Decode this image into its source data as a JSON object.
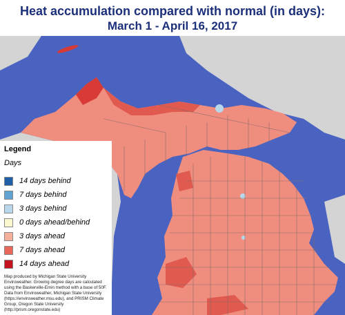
{
  "title": {
    "line1": "Heat accumulation compared with normal (in days):",
    "line2": "March 1 - April 16, 2017"
  },
  "legend": {
    "heading": "Legend",
    "subheading": "Days",
    "items": [
      {
        "label": "14 days behind",
        "color": "#1f5fa8"
      },
      {
        "label": "7 days behind",
        "color": "#5fa3d1"
      },
      {
        "label": "3 days behind",
        "color": "#b9d7ea"
      },
      {
        "label": "0 days ahead/behind",
        "color": "#fbf8cf"
      },
      {
        "label": "3 days ahead",
        "color": "#f4b09b"
      },
      {
        "label": "7 days ahead",
        "color": "#e8675a"
      },
      {
        "label": "14 days ahead",
        "color": "#c4121f"
      }
    ],
    "credit": "Map produced by Michigan State University Enviroweather. Growing degree days are calculated using the Baskerville-Emin method with a base of 50F.  Data from Enviroweather, Michigan State University (https://enviroweather.msu.edu), and PRISM Climate Group, Oregon State University (http://prism.oregonstate.edu)"
  },
  "map": {
    "water_color": "#4a62c0",
    "land_outside_color": "#d4d4d4",
    "michigan_base_color": "#ef8e7f"
  }
}
